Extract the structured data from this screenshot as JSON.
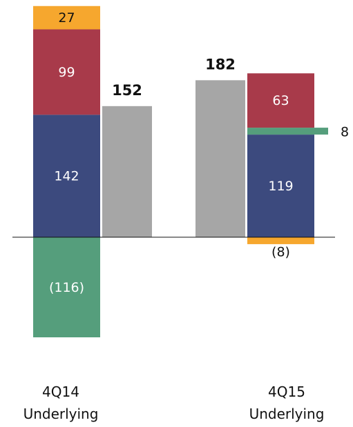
{
  "chart_data": {
    "type": "stacked-bar",
    "categories": [
      "4Q14 Underlying",
      "4Q15 Underlying"
    ],
    "series": [
      {
        "color": "#3c4a7e",
        "values": [
          142,
          119
        ]
      },
      {
        "color": "#559e7c",
        "values": [
          -116,
          8
        ],
        "value_labels": [
          "(116)",
          "8"
        ]
      },
      {
        "color": "#a83a4a",
        "values": [
          99,
          63
        ]
      },
      {
        "color": "#f6a72e",
        "values": [
          27,
          -8
        ],
        "value_labels": [
          "27",
          "(8)"
        ]
      }
    ],
    "totals": {
      "color": "#a6a6a6",
      "values": [
        152,
        182
      ]
    },
    "ylim": [
      -120,
      275
    ]
  }
}
